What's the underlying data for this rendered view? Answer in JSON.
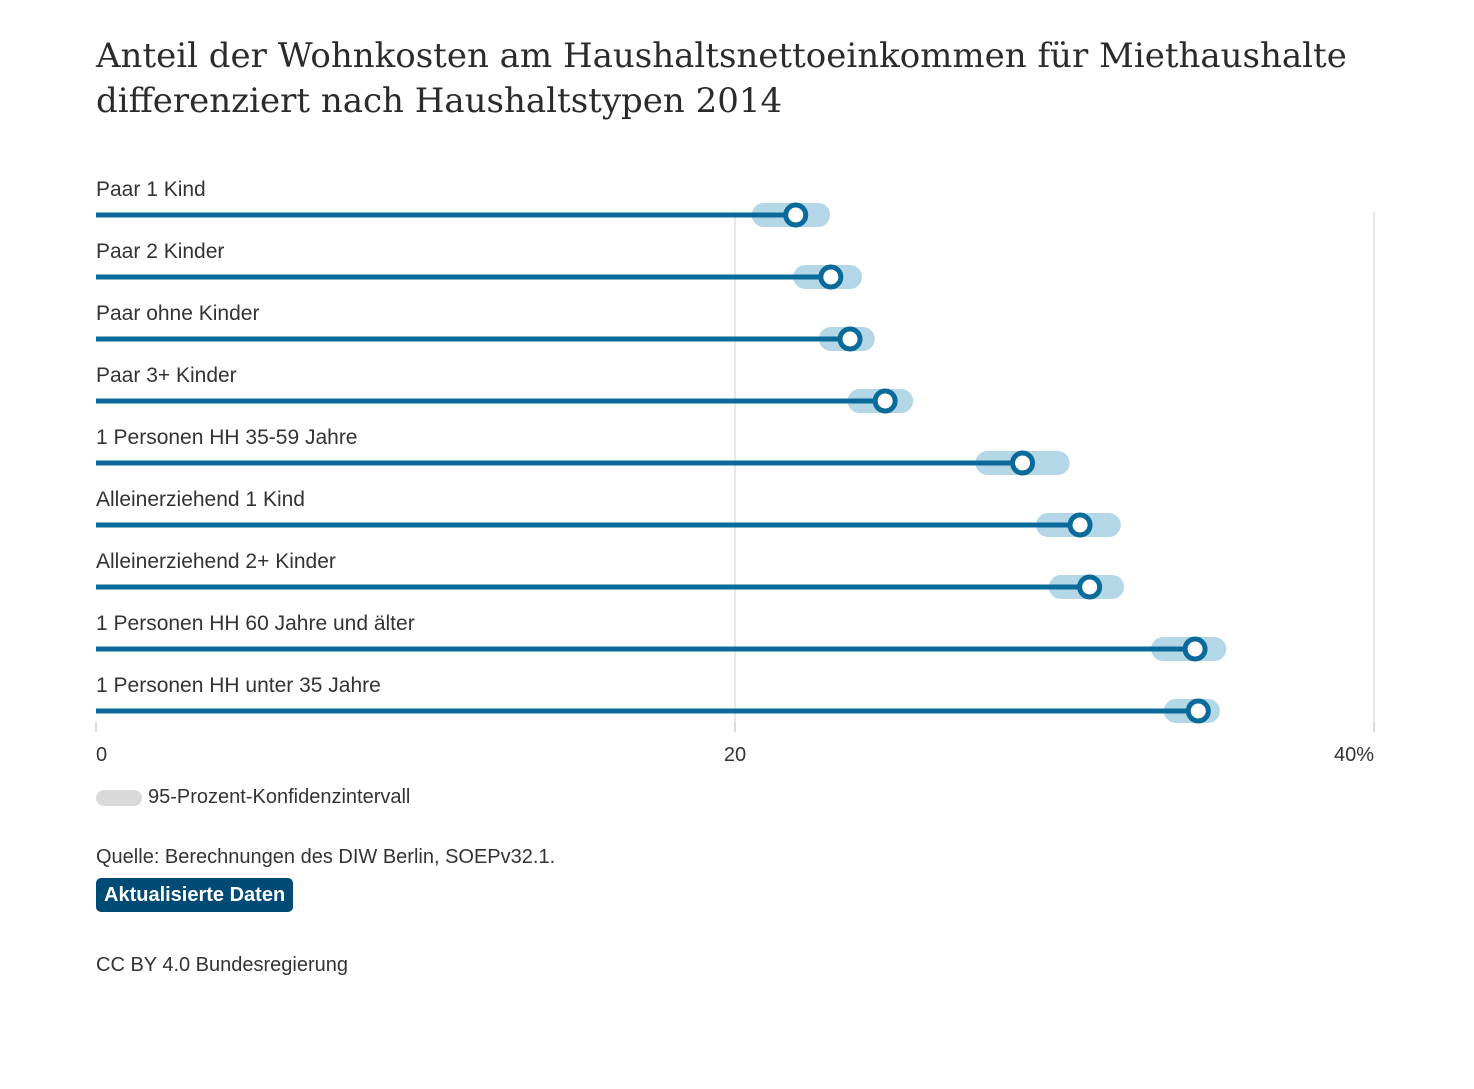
{
  "title": {
    "line1": "Anteil der Wohnkosten am Haushaltsnettoeinkommen für Miethaushalte",
    "line2": "differenziert nach Haushaltstypen 2014"
  },
  "legend": {
    "label": "95-Prozent-Konfidenzintervall"
  },
  "source": "Quelle: Berechnungen des DIW Berlin, SOEPv32.1.",
  "update_badge": "Aktualisierte Daten",
  "license": "CC BY 4.0 Bundesregierung",
  "colors": {
    "line": "#0a6b9b",
    "dot_stroke": "#0a6b9b",
    "ci": "#b3d7e6",
    "grid": "#e0e0e0",
    "badge": "#004b76"
  },
  "chart_data": {
    "type": "dot-range",
    "title": "Anteil der Wohnkosten am Haushaltsnettoeinkommen für Miethaushalte differenziert nach Haushaltstypen 2014",
    "categories": [
      "Paar 1 Kind",
      "Paar 2 Kinder",
      "Paar ohne Kinder",
      "Paar 3+ Kinder",
      "1 Personen HH 35-59 Jahre",
      "Alleinerziehend 1 Kind",
      "Alleinerziehend 2+ Kinder",
      "1 Personen HH 60 Jahre und älter",
      "1 Personen HH unter 35 Jahre"
    ],
    "values": [
      21.9,
      23.0,
      23.6,
      24.7,
      29.0,
      30.8,
      31.1,
      34.4,
      34.5
    ],
    "ci_low": [
      20.9,
      22.2,
      23.0,
      23.9,
      27.9,
      29.8,
      30.2,
      33.4,
      33.8
    ],
    "ci_high": [
      22.6,
      23.6,
      24.0,
      25.2,
      30.1,
      31.7,
      31.8,
      35.0,
      34.8
    ],
    "xlim": [
      0,
      40
    ],
    "xticks": [
      {
        "value": 0,
        "label": "0"
      },
      {
        "value": 20,
        "label": "20"
      },
      {
        "value": 40,
        "label": "40%"
      }
    ],
    "grid": true
  }
}
